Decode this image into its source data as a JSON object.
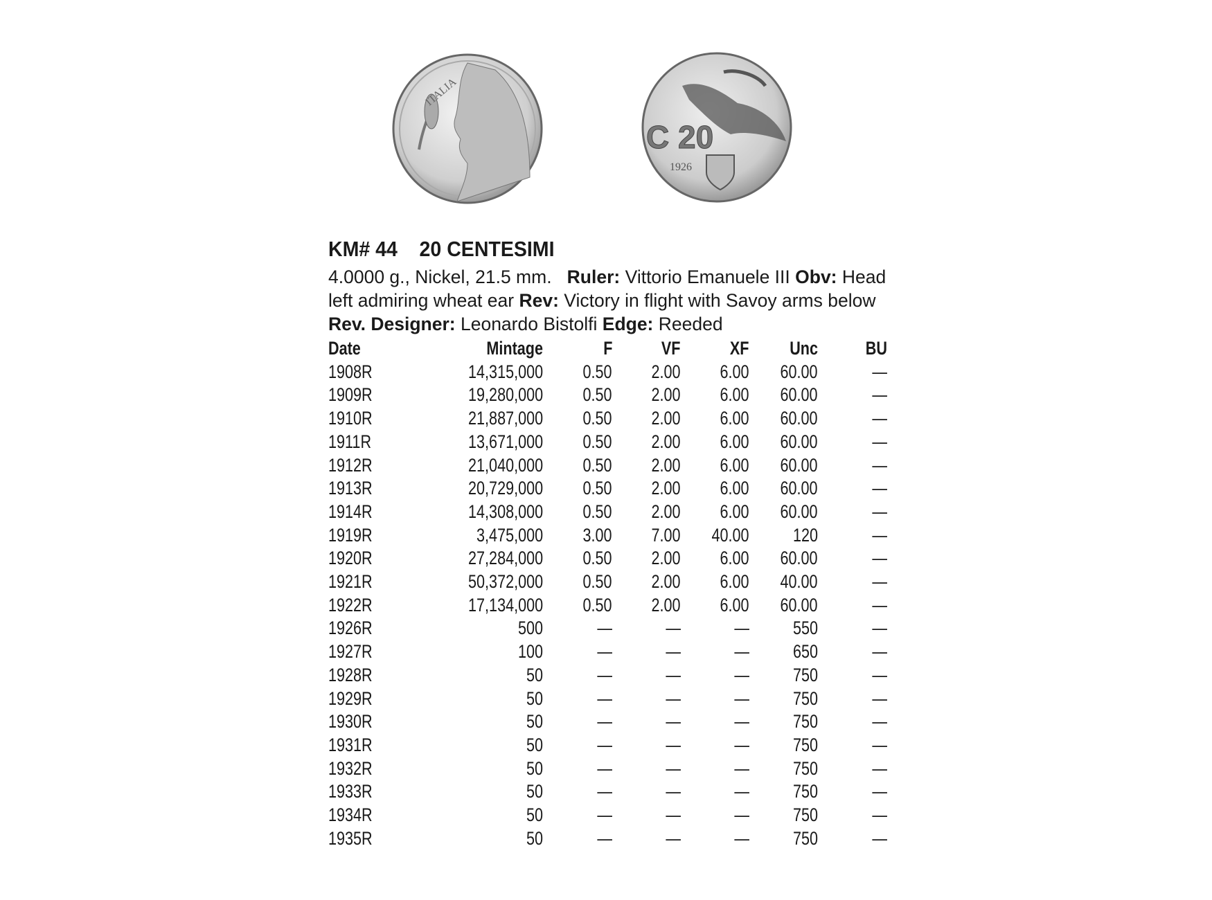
{
  "title": "KM# 44    20 CENTESIMI",
  "description": {
    "specs": "4.0000 g., Nickel, 21.5 mm.",
    "ruler_label": "Ruler:",
    "ruler": "Vittorio Emanuele III",
    "obv_label": "Obv:",
    "obv": "Head left admiring wheat ear",
    "rev_label": "Rev:",
    "rev": "Victory in flight with Savoy arms below",
    "designer_label": "Rev. Designer:",
    "designer": "Leonardo Bistolfi",
    "edge_label": "Edge:",
    "edge": "Reeded"
  },
  "coins": {
    "obverse_legend": "ITALIA",
    "reverse_legend": "C 20",
    "reverse_year": "1926"
  },
  "table": {
    "headers": [
      "Date",
      "Mintage",
      "F",
      "VF",
      "XF",
      "Unc",
      "BU"
    ],
    "rows": [
      [
        "1908R",
        "14,315,000",
        "0.50",
        "2.00",
        "6.00",
        "60.00",
        "—"
      ],
      [
        "1909R",
        "19,280,000",
        "0.50",
        "2.00",
        "6.00",
        "60.00",
        "—"
      ],
      [
        "1910R",
        "21,887,000",
        "0.50",
        "2.00",
        "6.00",
        "60.00",
        "—"
      ],
      [
        "1911R",
        "13,671,000",
        "0.50",
        "2.00",
        "6.00",
        "60.00",
        "—"
      ],
      [
        "1912R",
        "21,040,000",
        "0.50",
        "2.00",
        "6.00",
        "60.00",
        "—"
      ],
      [
        "1913R",
        "20,729,000",
        "0.50",
        "2.00",
        "6.00",
        "60.00",
        "—"
      ],
      [
        "1914R",
        "14,308,000",
        "0.50",
        "2.00",
        "6.00",
        "60.00",
        "—"
      ],
      [
        "1919R",
        "3,475,000",
        "3.00",
        "7.00",
        "40.00",
        "120",
        "—"
      ],
      [
        "1920R",
        "27,284,000",
        "0.50",
        "2.00",
        "6.00",
        "60.00",
        "—"
      ],
      [
        "1921R",
        "50,372,000",
        "0.50",
        "2.00",
        "6.00",
        "40.00",
        "—"
      ],
      [
        "1922R",
        "17,134,000",
        "0.50",
        "2.00",
        "6.00",
        "60.00",
        "—"
      ],
      [
        "1926R",
        "500",
        "—",
        "—",
        "—",
        "550",
        "—"
      ],
      [
        "1927R",
        "100",
        "—",
        "—",
        "—",
        "650",
        "—"
      ],
      [
        "1928R",
        "50",
        "—",
        "—",
        "—",
        "750",
        "—"
      ],
      [
        "1929R",
        "50",
        "—",
        "—",
        "—",
        "750",
        "—"
      ],
      [
        "1930R",
        "50",
        "—",
        "—",
        "—",
        "750",
        "—"
      ],
      [
        "1931R",
        "50",
        "—",
        "—",
        "—",
        "750",
        "—"
      ],
      [
        "1932R",
        "50",
        "—",
        "—",
        "—",
        "750",
        "—"
      ],
      [
        "1933R",
        "50",
        "—",
        "—",
        "—",
        "750",
        "—"
      ],
      [
        "1934R",
        "50",
        "—",
        "—",
        "—",
        "750",
        "—"
      ],
      [
        "1935R",
        "50",
        "—",
        "—",
        "—",
        "750",
        "—"
      ]
    ]
  }
}
